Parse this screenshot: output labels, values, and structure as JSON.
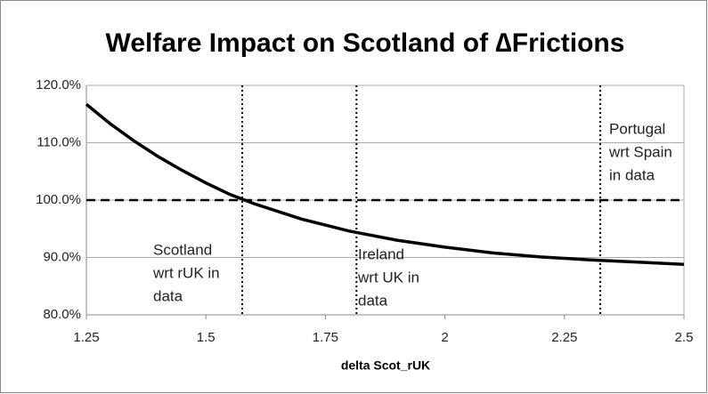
{
  "chart_data": {
    "type": "line",
    "title": "Welfare Impact on Scotland of ∆Frictions",
    "x_label": "delta Scot_rUK",
    "x": [
      1.25,
      1.3,
      1.35,
      1.4,
      1.45,
      1.5,
      1.55,
      1.6,
      1.7,
      1.8,
      1.9,
      2.0,
      2.1,
      2.2,
      2.3,
      2.4,
      2.5
    ],
    "values": [
      116.7,
      113.3,
      110.3,
      107.6,
      105.2,
      103.0,
      101.0,
      99.4,
      96.7,
      94.6,
      93.0,
      91.8,
      90.8,
      90.1,
      89.6,
      89.2,
      88.8
    ],
    "color": "#000000",
    "xlim": [
      1.25,
      2.5
    ],
    "xticks": [
      1.25,
      1.5,
      1.75,
      2,
      2.25,
      2.5
    ],
    "ylim": [
      80,
      120
    ],
    "yticks": [
      {
        "value": 80,
        "label": "80.0%"
      },
      {
        "value": 90,
        "label": "90.0%"
      },
      {
        "value": 100,
        "label": "100.0%"
      },
      {
        "value": 110,
        "label": "110.0%"
      },
      {
        "value": 120,
        "label": "120.0%"
      }
    ],
    "grid": true,
    "hlines": [
      100
    ],
    "vlines": [
      1.576,
      1.815,
      2.325
    ],
    "annotations": [
      {
        "lines": [
          "Scotland",
          "wrt rUK in",
          "data"
        ]
      },
      {
        "lines": [
          "Ireland",
          "wrt UK in",
          "data"
        ]
      },
      {
        "lines": [
          "Portugal",
          "wrt Spain",
          "in data"
        ]
      }
    ]
  }
}
